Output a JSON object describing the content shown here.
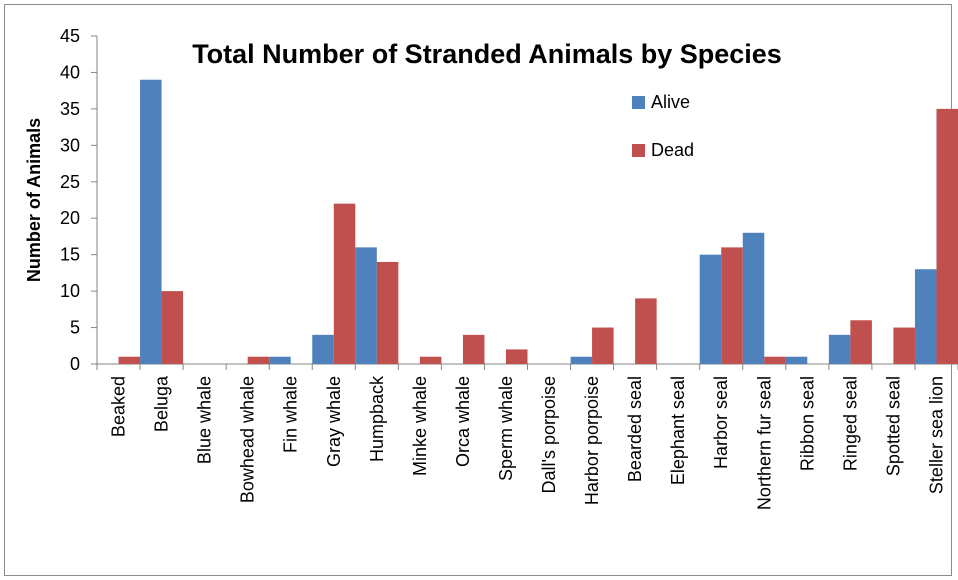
{
  "chart_data": {
    "type": "bar",
    "title": "Total Number of Stranded Animals by Species",
    "xlabel": "",
    "ylabel": "Number of Animals",
    "ylim": [
      0,
      45
    ],
    "yticks": [
      0,
      5,
      10,
      15,
      20,
      25,
      30,
      35,
      40,
      45
    ],
    "grid": false,
    "legend_position": "top-right",
    "categories": [
      "Beaked",
      "Beluga",
      "Blue whale",
      "Bowhead whale",
      "Fin whale",
      "Gray whale",
      "Humpback",
      "Minke whale",
      "Orca whale",
      "Sperm whale",
      "Dall's porpoise",
      "Harbor porpoise",
      "Bearded seal",
      "Elephant seal",
      "Harbor seal",
      "Northern fur seal",
      "Ribbon seal",
      "Ringed seal",
      "Spotted seal",
      "Steller sea lion"
    ],
    "series": [
      {
        "name": "Alive",
        "color": "#4f81bd",
        "values": [
          0,
          39,
          0,
          0,
          1,
          4,
          16,
          0,
          0,
          0,
          0,
          1,
          0,
          0,
          15,
          18,
          1,
          4,
          0,
          13
        ]
      },
      {
        "name": "Dead",
        "color": "#c0504d",
        "values": [
          1,
          10,
          0,
          1,
          0,
          22,
          14,
          1,
          4,
          2,
          0,
          5,
          9,
          0,
          16,
          1,
          0,
          6,
          5,
          35
        ]
      }
    ]
  }
}
